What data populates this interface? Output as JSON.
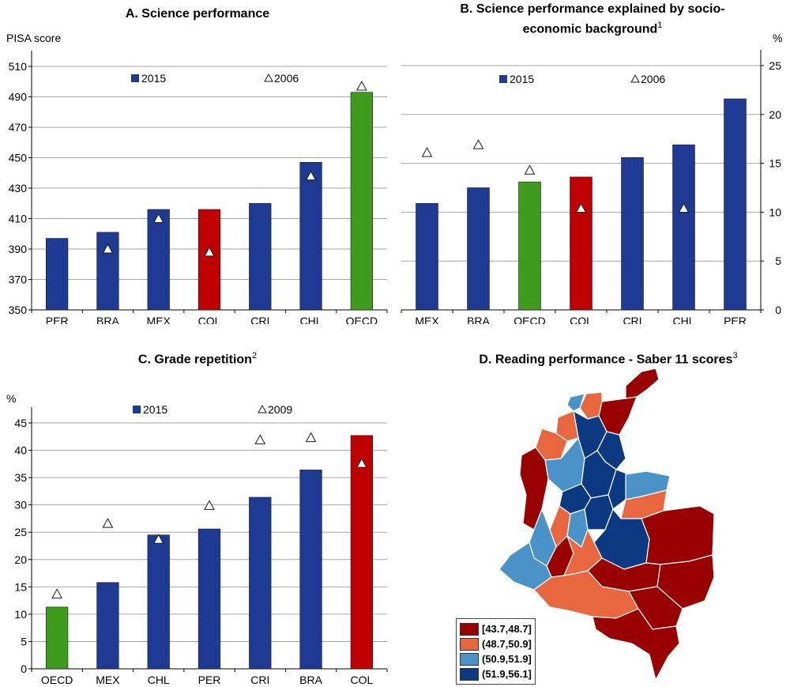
{
  "chart_data": [
    {
      "id": "A",
      "type": "bar",
      "title": "A. Science performance",
      "ylabel": "PISA score",
      "ylim": [
        350,
        510
      ],
      "yticks": [
        350,
        370,
        390,
        410,
        430,
        450,
        470,
        490,
        510
      ],
      "categories": [
        "PER",
        "BRA",
        "MEX",
        "COL",
        "CRI",
        "CHL",
        "OECD"
      ],
      "series": [
        {
          "name": "2015",
          "type": "bar",
          "values": [
            397,
            401,
            416,
            416,
            420,
            447,
            493
          ]
        },
        {
          "name": "2006",
          "type": "marker",
          "values": [
            null,
            390,
            410,
            388,
            null,
            438,
            497
          ]
        }
      ],
      "bar_colors": [
        "#1f3a93",
        "#1f3a93",
        "#1f3a93",
        "#c00000",
        "#1f3a93",
        "#1f3a93",
        "#3f9b1c"
      ],
      "legend": {
        "placement": "top",
        "bar_label": "2015",
        "marker_label": "2006"
      },
      "grid": true,
      "axis_side": "left"
    },
    {
      "id": "B",
      "type": "bar",
      "title": "B. Science performance explained by socio-economic background",
      "title_line1": "B. Science performance explained by socio-",
      "title_line2": "economic background",
      "title_note": "1",
      "ylabel": "%",
      "ylim": [
        0,
        25
      ],
      "yticks": [
        0,
        5,
        10,
        15,
        20,
        25
      ],
      "categories": [
        "MEX",
        "BRA",
        "OECD",
        "COL",
        "CRI",
        "CHL",
        "PER"
      ],
      "series": [
        {
          "name": "2015",
          "type": "bar",
          "values": [
            10.9,
            12.5,
            13.1,
            13.6,
            15.6,
            16.9,
            21.6
          ]
        },
        {
          "name": "2006",
          "type": "marker",
          "values": [
            16.1,
            16.9,
            14.3,
            10.4,
            null,
            10.4,
            null
          ]
        }
      ],
      "bar_colors": [
        "#1f3a93",
        "#1f3a93",
        "#3f9b1c",
        "#c00000",
        "#1f3a93",
        "#1f3a93",
        "#1f3a93"
      ],
      "legend": {
        "placement": "top",
        "bar_label": "2015",
        "marker_label": "2006"
      },
      "grid": true,
      "axis_side": "right"
    },
    {
      "id": "C",
      "type": "bar",
      "title": "C. Grade repetition",
      "title_note": "2",
      "ylabel": "%",
      "ylim": [
        0,
        45
      ],
      "yticks": [
        0,
        5,
        10,
        15,
        20,
        25,
        30,
        35,
        40,
        45
      ],
      "categories": [
        "OECD",
        "MEX",
        "CHL",
        "PER",
        "CRI",
        "BRA",
        "COL"
      ],
      "series": [
        {
          "name": "2015",
          "type": "bar",
          "values": [
            11.3,
            15.8,
            24.5,
            25.6,
            31.4,
            36.4,
            42.7
          ]
        },
        {
          "name": "2009",
          "type": "marker",
          "values": [
            13.7,
            26.6,
            23.7,
            29.9,
            41.9,
            42.3,
            37.6
          ]
        }
      ],
      "bar_colors": [
        "#3f9b1c",
        "#1f3a93",
        "#1f3a93",
        "#1f3a93",
        "#1f3a93",
        "#1f3a93",
        "#c00000"
      ],
      "legend": {
        "placement": "top",
        "bar_label": "2015",
        "marker_label": "2009"
      },
      "grid": true,
      "axis_side": "left"
    }
  ],
  "map": {
    "title": "D. Reading performance - Saber 11 scores",
    "title_note": "3",
    "legend": [
      {
        "label": "[43.7,48.7]",
        "color": "#990000"
      },
      {
        "label": "(48.7,50.9]",
        "color": "#e8673f"
      },
      {
        "label": "(50.9,51.9]",
        "color": "#4a93c8"
      },
      {
        "label": "(51.9,56.1]",
        "color": "#0c3a82"
      }
    ],
    "legend_placement": "bottom-left",
    "icon": "colombia-department-map-icon"
  }
}
